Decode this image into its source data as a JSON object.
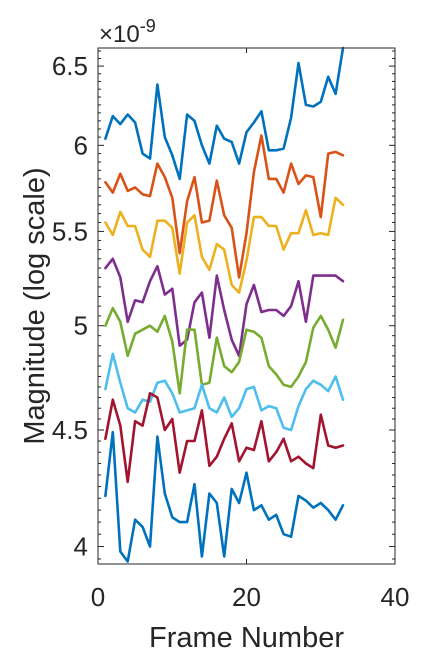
{
  "chart_data": {
    "type": "line",
    "title": "",
    "xlabel": "Frame Number",
    "ylabel": "Magnitude (log scale)",
    "y_scale": "log",
    "y_multiplier_label": "×10",
    "y_multiplier_exponent": "-9",
    "xlim": [
      0,
      40
    ],
    "ylim": [
      3.93,
      6.62
    ],
    "x_ticks": [
      0,
      20,
      40
    ],
    "x_tick_labels": [
      "0",
      "20",
      "40"
    ],
    "y_ticks": [
      4,
      4.5,
      5,
      5.5,
      6,
      6.5
    ],
    "y_tick_labels": [
      "4",
      "4.5",
      "5",
      "5.5",
      "6",
      "6.5"
    ],
    "grid": false,
    "legend": "none",
    "x": [
      1,
      2,
      3,
      4,
      5,
      6,
      7,
      8,
      9,
      10,
      11,
      12,
      13,
      14,
      15,
      16,
      17,
      18,
      19,
      20,
      21,
      22,
      23,
      24,
      25,
      26,
      27,
      28,
      29,
      30,
      31,
      32,
      33
    ],
    "series": [
      {
        "color": "#0072BD",
        "values": [
          6.04,
          6.18,
          6.13,
          6.19,
          6.14,
          5.95,
          5.92,
          6.38,
          6.05,
          5.94,
          5.8,
          6.19,
          6.15,
          6.0,
          5.89,
          6.12,
          6.04,
          6.02,
          5.89,
          6.08,
          6.14,
          6.21,
          5.97,
          5.97,
          5.98,
          6.17,
          6.52,
          6.25,
          6.24,
          6.27,
          6.43,
          6.32,
          6.62
        ]
      },
      {
        "color": "#D95319",
        "values": [
          5.78,
          5.72,
          5.83,
          5.73,
          5.75,
          5.71,
          5.7,
          5.89,
          5.81,
          5.69,
          5.38,
          5.67,
          5.81,
          5.55,
          5.56,
          5.79,
          5.59,
          5.52,
          5.25,
          5.49,
          5.84,
          6.06,
          5.8,
          5.8,
          5.72,
          5.89,
          5.77,
          5.82,
          5.81,
          5.58,
          5.95,
          5.96,
          5.94
        ]
      },
      {
        "color": "#EDB120",
        "values": [
          5.55,
          5.48,
          5.61,
          5.53,
          5.53,
          5.4,
          5.36,
          5.56,
          5.56,
          5.52,
          5.27,
          5.55,
          5.59,
          5.36,
          5.29,
          5.43,
          5.4,
          5.21,
          5.17,
          5.34,
          5.58,
          5.58,
          5.53,
          5.53,
          5.4,
          5.49,
          5.49,
          5.62,
          5.48,
          5.49,
          5.48,
          5.69,
          5.65
        ]
      },
      {
        "color": "#7E2F8E",
        "values": [
          5.3,
          5.35,
          5.25,
          5.02,
          5.13,
          5.12,
          5.23,
          5.31,
          5.16,
          5.19,
          4.9,
          4.93,
          5.12,
          5.17,
          4.94,
          5.26,
          5.08,
          4.93,
          4.85,
          5.11,
          5.21,
          5.07,
          5.08,
          5.08,
          5.05,
          5.1,
          5.23,
          5.02,
          5.26,
          5.26,
          5.26,
          5.26,
          5.23
        ]
      },
      {
        "color": "#77AC30",
        "values": [
          5.0,
          5.09,
          5.02,
          4.85,
          4.96,
          4.98,
          5.0,
          4.97,
          5.05,
          4.92,
          4.67,
          4.98,
          4.98,
          4.71,
          4.72,
          4.94,
          4.8,
          4.77,
          4.82,
          4.98,
          4.97,
          4.94,
          4.8,
          4.76,
          4.71,
          4.7,
          4.75,
          4.82,
          4.99,
          5.05,
          4.98,
          4.89,
          5.03
        ]
      },
      {
        "color": "#4DBEEE",
        "values": [
          4.69,
          4.86,
          4.72,
          4.6,
          4.58,
          4.64,
          4.63,
          4.72,
          4.73,
          4.67,
          4.58,
          4.59,
          4.6,
          4.71,
          4.6,
          4.58,
          4.65,
          4.56,
          4.6,
          4.69,
          4.7,
          4.59,
          4.61,
          4.6,
          4.51,
          4.5,
          4.61,
          4.69,
          4.73,
          4.71,
          4.68,
          4.75,
          4.64
        ]
      },
      {
        "color": "#A2142F",
        "values": [
          4.46,
          4.64,
          4.52,
          4.27,
          4.54,
          4.52,
          4.67,
          4.65,
          4.5,
          4.55,
          4.31,
          4.45,
          4.45,
          4.59,
          4.34,
          4.38,
          4.46,
          4.53,
          4.36,
          4.42,
          4.41,
          4.54,
          4.36,
          4.4,
          4.46,
          4.36,
          4.38,
          4.35,
          4.33,
          4.57,
          4.43,
          4.42,
          4.43
        ]
      },
      {
        "color": "#0072BD",
        "values": [
          4.21,
          4.49,
          3.98,
          3.94,
          4.11,
          4.08,
          4.0,
          4.47,
          4.22,
          4.12,
          4.1,
          4.1,
          4.26,
          3.96,
          4.22,
          4.18,
          3.96,
          4.24,
          4.18,
          4.31,
          4.15,
          4.17,
          4.11,
          4.13,
          4.05,
          4.04,
          4.21,
          4.19,
          4.16,
          4.18,
          4.15,
          4.11,
          4.17
        ]
      }
    ]
  }
}
